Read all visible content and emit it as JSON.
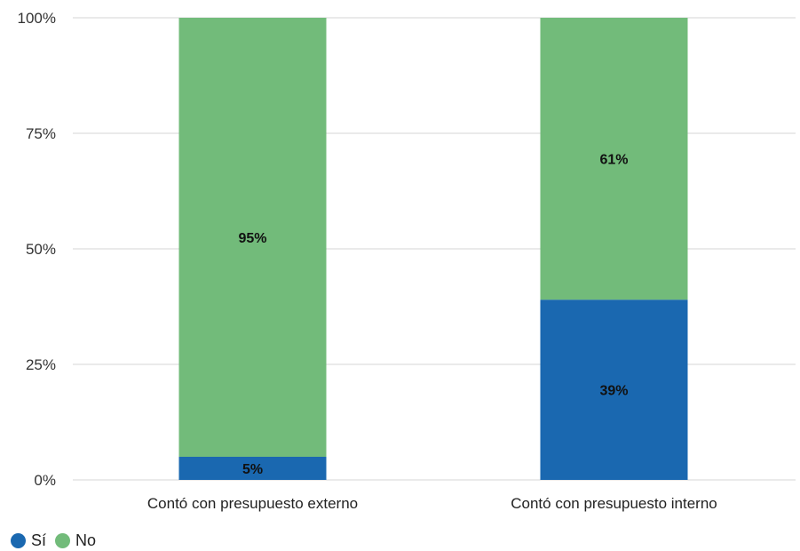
{
  "chart_data": {
    "type": "bar",
    "stacked": true,
    "percent": true,
    "categories": [
      "Contó con presupuesto externo",
      "Contó con presupuesto interno"
    ],
    "series": [
      {
        "name": "Sí",
        "values": [
          5,
          39
        ],
        "labels": [
          "5%",
          "39%"
        ],
        "color": "#1a68b0"
      },
      {
        "name": "No",
        "values": [
          95,
          61
        ],
        "labels": [
          "95%",
          "61%"
        ],
        "color": "#72bb7a"
      }
    ],
    "ylim": [
      0,
      100
    ],
    "yticks": [
      0,
      25,
      50,
      75,
      100
    ],
    "ytick_labels": [
      "0%",
      "25%",
      "50%",
      "75%",
      "100%"
    ],
    "grid": true,
    "legend_position": "bottom-left"
  },
  "legend": {
    "items": [
      {
        "label": "Sí",
        "color": "#1a68b0"
      },
      {
        "label": "No",
        "color": "#72bb7a"
      }
    ]
  }
}
